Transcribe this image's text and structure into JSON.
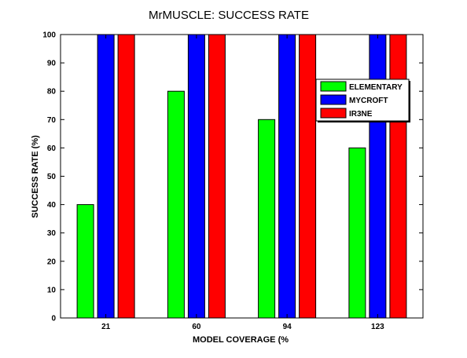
{
  "chart_data": {
    "type": "bar",
    "title": "MrMUSCLE: SUCCESS RATE",
    "xlabel": "MODEL COVERAGE (%",
    "ylabel": "SUCCESS RATE (%)",
    "categories": [
      "21",
      "60",
      "94",
      "123"
    ],
    "ylim": [
      0,
      100
    ],
    "yticks": [
      0,
      10,
      20,
      30,
      40,
      50,
      60,
      70,
      80,
      90,
      100
    ],
    "grid": false,
    "legend_position": "top-right",
    "series": [
      {
        "name": "ELEMENTARY",
        "color": "#00ff00",
        "values": [
          40,
          80,
          70,
          60
        ]
      },
      {
        "name": "MYCROFT",
        "color": "#0000ff",
        "values": [
          100,
          100,
          100,
          100
        ]
      },
      {
        "name": "IR3NE",
        "color": "#ff0000",
        "values": [
          100,
          100,
          100,
          100
        ]
      }
    ]
  }
}
